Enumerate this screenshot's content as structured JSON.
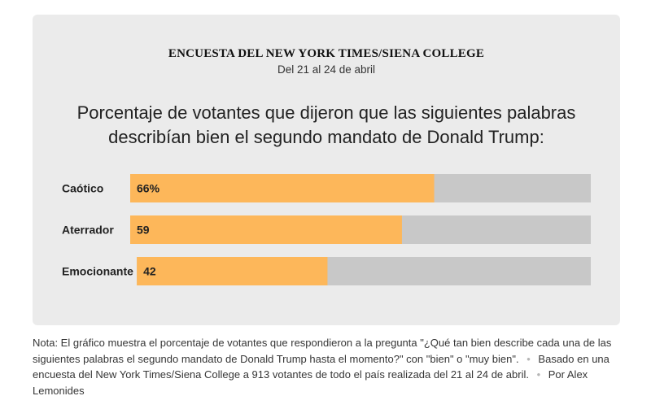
{
  "header": {
    "kicker": "ENCUESTA DEL NEW YORK TIMES/SIENA COLLEGE",
    "dates": "Del 21 al 24 de abril"
  },
  "headline": {
    "line1": "Porcentaje de votantes que dijeron que las siguientes palabras",
    "line2": "describían bien el segundo mandato de Donald Trump:"
  },
  "chart_data": {
    "type": "bar",
    "orientation": "horizontal",
    "categories": [
      "Caótico",
      "Aterrador",
      "Emocionante"
    ],
    "values": [
      66,
      59,
      42
    ],
    "value_labels": [
      "66%",
      "59",
      "42"
    ],
    "xlim": [
      0,
      100
    ],
    "grid": false,
    "colors": {
      "bar": "#fdb75a",
      "track": "#c8c8c8"
    }
  },
  "note": {
    "text": "Nota: El gráfico muestra el porcentaje de votantes que respondieron a la pregunta \"¿Qué tan bien describe cada una de las siguientes palabras el segundo mandato de Donald Trump hasta el momento?\" con \"bien\" o \"muy bien\".",
    "source": "Basado en una encuesta del New York Times/Siena College a 913 votantes de todo el país realizada del 21 al 24 de abril.",
    "byline": "Por Alex Lemonides",
    "separator": "•"
  }
}
